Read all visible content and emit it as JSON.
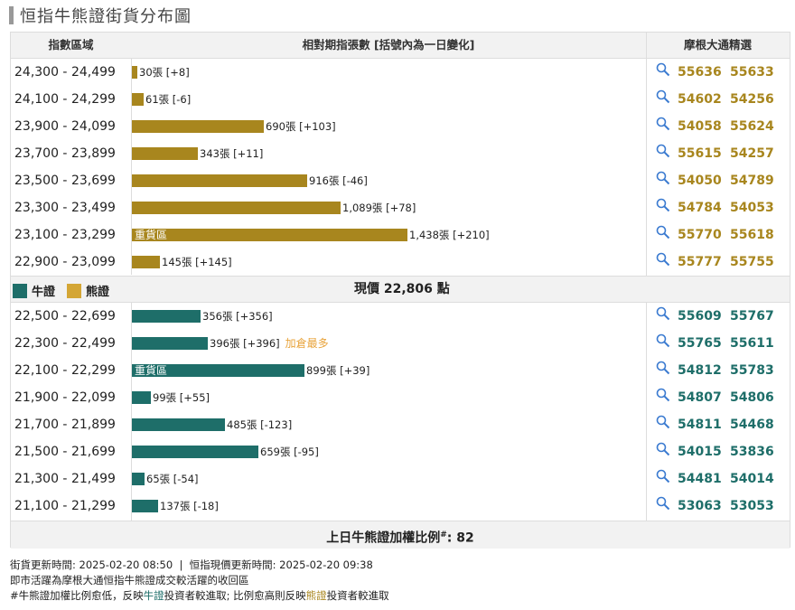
{
  "page_title": "恒指牛熊證街貨分布圖",
  "header": {
    "col_range": "指數區域",
    "col_chart": "相對期指張數 [括號內為一日變化]",
    "col_picks": "摩根大通精選"
  },
  "colors": {
    "bull": "#1e6e69",
    "bear": "#a8861e",
    "note": "#e8a33a"
  },
  "icons": {
    "search": "magnifier-icon"
  },
  "middle": {
    "bull_label": "牛證",
    "bear_label": "熊證",
    "price_text": "現價 22,806 點"
  },
  "footer": {
    "ratio_label": "上日牛熊證加權比例",
    "ratio_mark": "#",
    "ratio_value": ": 82"
  },
  "notes": {
    "line1": "街貨更新時間: 2025-02-20 08:50  |  恒指現價更新時間: 2025-02-20 09:38",
    "line2": "即市活躍為摩根大通恒指牛熊證成交較活躍的收回區",
    "line3_a": "#牛熊證加權比例愈低，反映",
    "line3_b": "牛證",
    "line3_c": "投資者較進取; 比例愈高則反映",
    "line3_d": "熊證",
    "line3_e": "投資者較進取"
  },
  "chart_data": {
    "type": "bar",
    "orientation": "horizontal",
    "unit": "張",
    "max_contracts": 1438,
    "bear": [
      {
        "range": "24,300 - 24,499",
        "contracts": 30,
        "label": "30張 [+8]",
        "tag": "",
        "note": "",
        "codes": [
          "55636",
          "55633"
        ]
      },
      {
        "range": "24,100 - 24,299",
        "contracts": 61,
        "label": "61張 [-6]",
        "tag": "",
        "note": "",
        "codes": [
          "54602",
          "54256"
        ]
      },
      {
        "range": "23,900 - 24,099",
        "contracts": 690,
        "label": "690張 [+103]",
        "tag": "",
        "note": "",
        "codes": [
          "54058",
          "55624"
        ]
      },
      {
        "range": "23,700 - 23,899",
        "contracts": 343,
        "label": "343張 [+11]",
        "tag": "",
        "note": "",
        "codes": [
          "55615",
          "54257"
        ]
      },
      {
        "range": "23,500 - 23,699",
        "contracts": 916,
        "label": "916張 [-46]",
        "tag": "",
        "note": "",
        "codes": [
          "54050",
          "54789"
        ]
      },
      {
        "range": "23,300 - 23,499",
        "contracts": 1089,
        "label": "1,089張 [+78]",
        "tag": "",
        "note": "",
        "codes": [
          "54784",
          "54053"
        ]
      },
      {
        "range": "23,100 - 23,299",
        "contracts": 1438,
        "label": "1,438張 [+210]",
        "tag": "重貨區",
        "note": "",
        "codes": [
          "55770",
          "55618"
        ]
      },
      {
        "range": "22,900 - 23,099",
        "contracts": 145,
        "label": "145張 [+145]",
        "tag": "",
        "note": "",
        "codes": [
          "55777",
          "55755"
        ]
      }
    ],
    "bull": [
      {
        "range": "22,500 - 22,699",
        "contracts": 356,
        "label": "356張 [+356]",
        "tag": "",
        "note": "",
        "codes": [
          "55609",
          "55767"
        ]
      },
      {
        "range": "22,300 - 22,499",
        "contracts": 396,
        "label": "396張 [+396]",
        "tag": "",
        "note": "加倉最多",
        "codes": [
          "55765",
          "55611"
        ]
      },
      {
        "range": "22,100 - 22,299",
        "contracts": 899,
        "label": "899張 [+39]",
        "tag": "重貨區",
        "note": "",
        "codes": [
          "54812",
          "55783"
        ]
      },
      {
        "range": "21,900 - 22,099",
        "contracts": 99,
        "label": "99張 [+55]",
        "tag": "",
        "note": "",
        "codes": [
          "54807",
          "54806"
        ]
      },
      {
        "range": "21,700 - 21,899",
        "contracts": 485,
        "label": "485張 [-123]",
        "tag": "",
        "note": "",
        "codes": [
          "54811",
          "54468"
        ]
      },
      {
        "range": "21,500 - 21,699",
        "contracts": 659,
        "label": "659張 [-95]",
        "tag": "",
        "note": "",
        "codes": [
          "54015",
          "53836"
        ]
      },
      {
        "range": "21,300 - 21,499",
        "contracts": 65,
        "label": "65張 [-54]",
        "tag": "",
        "note": "",
        "codes": [
          "54481",
          "54014"
        ]
      },
      {
        "range": "21,100 - 21,299",
        "contracts": 137,
        "label": "137張 [-18]",
        "tag": "",
        "note": "",
        "codes": [
          "53063",
          "53053"
        ]
      }
    ]
  }
}
